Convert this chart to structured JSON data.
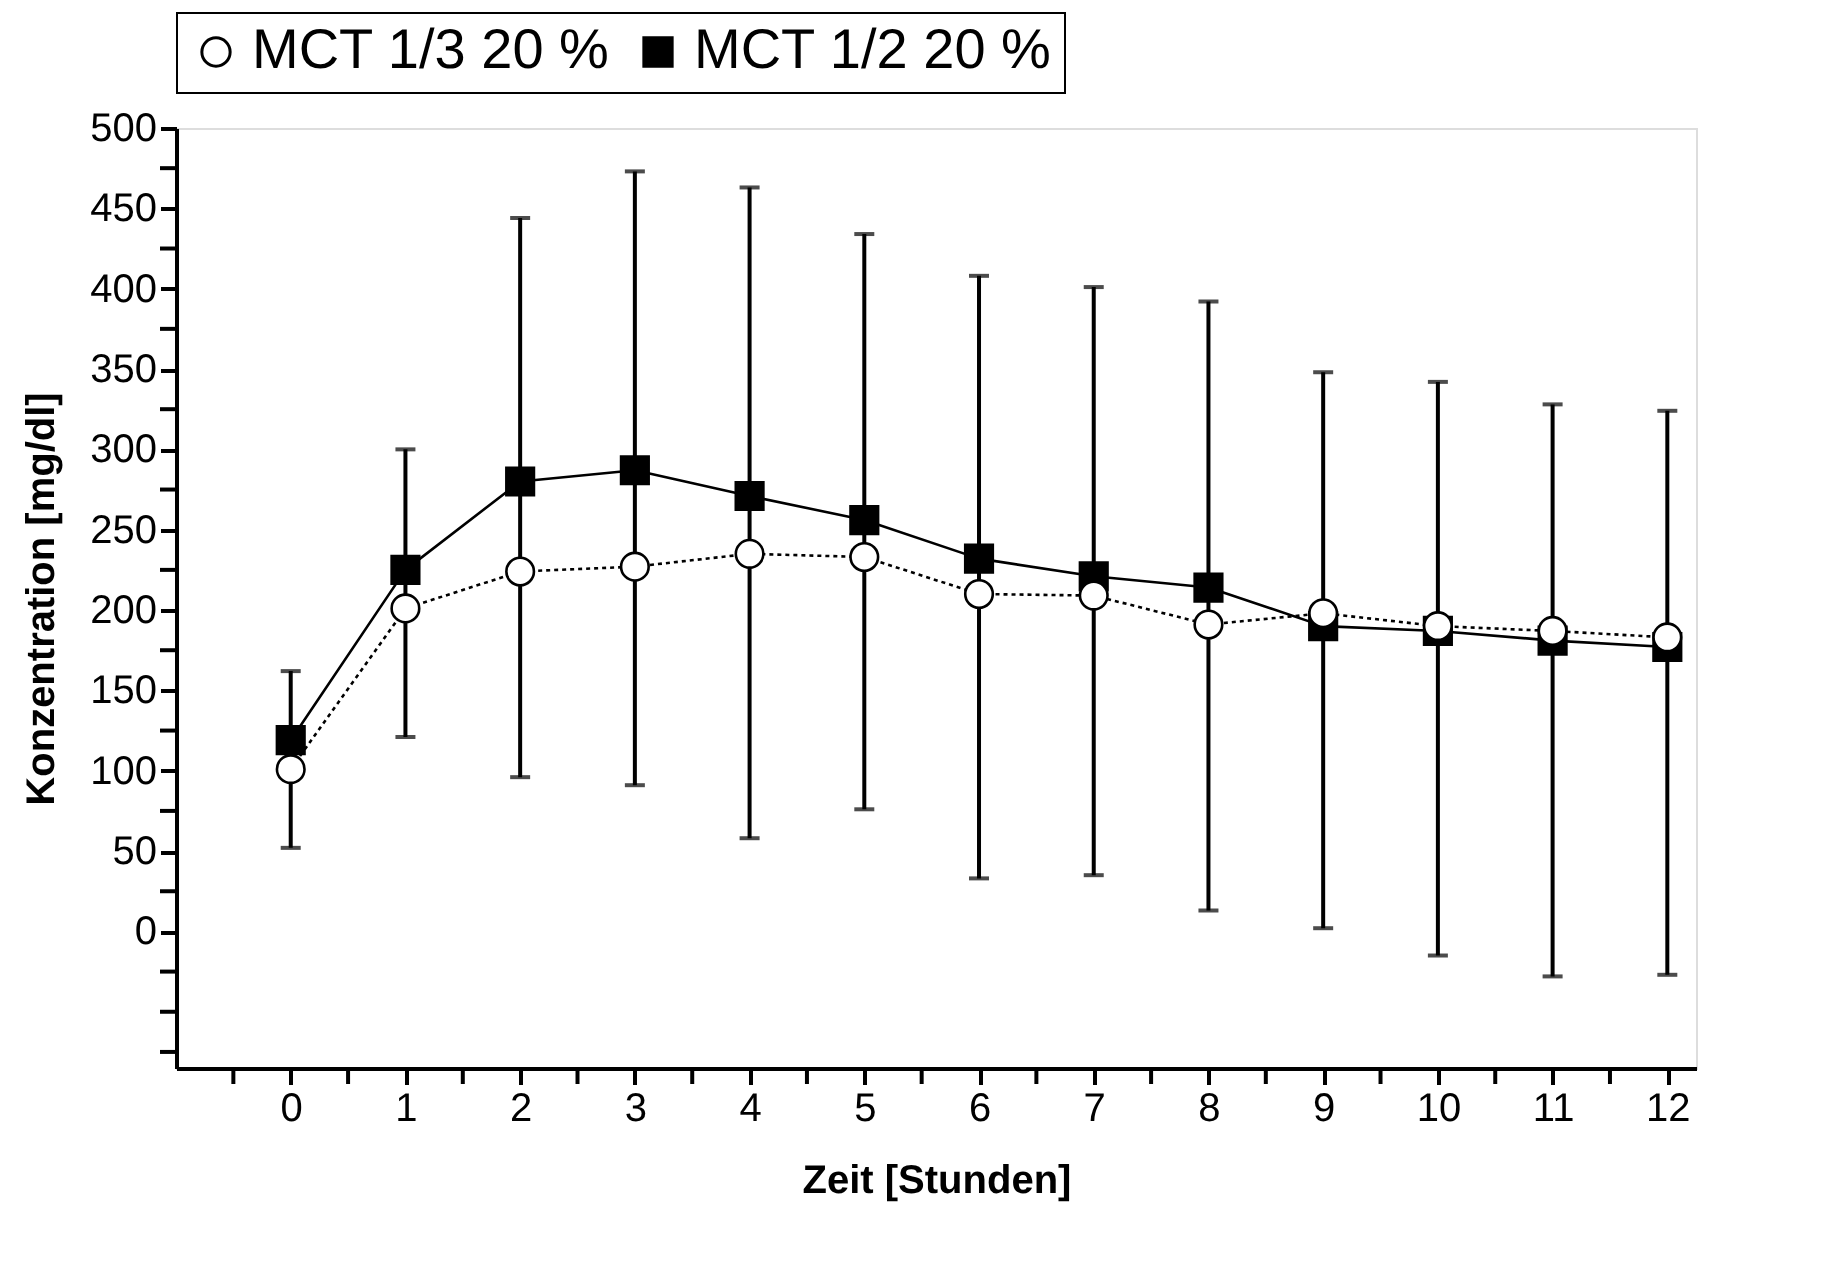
{
  "chart_data": {
    "type": "line",
    "xlabel": "Zeit [Stunden]",
    "ylabel": "Konzentration [mg/dl]",
    "x": [
      0,
      1,
      2,
      3,
      4,
      5,
      6,
      7,
      8,
      9,
      10,
      11,
      12
    ],
    "xlim": [
      -1,
      12.25
    ],
    "xticks": [
      {
        "value": -0.5,
        "label": null
      },
      0,
      {
        "value": 0.5,
        "label": null
      },
      1,
      {
        "value": 1.5,
        "label": null
      },
      2,
      {
        "value": 2.5,
        "label": null
      },
      3,
      {
        "value": 3.5,
        "label": null
      },
      4,
      {
        "value": 4.5,
        "label": null
      },
      5,
      {
        "value": 5.5,
        "label": null
      },
      6,
      {
        "value": 6.5,
        "label": null
      },
      7,
      {
        "value": 7.5,
        "label": null
      },
      8,
      {
        "value": 8.5,
        "label": null
      },
      9,
      {
        "value": 9.5,
        "label": null
      },
      10,
      {
        "value": 10.5,
        "label": null
      },
      11,
      {
        "value": 11.5,
        "label": null
      },
      12
    ],
    "ylim": [
      -85,
      500
    ],
    "yticks": [
      {
        "value": -75,
        "label": null
      },
      {
        "value": -50,
        "label": null
      },
      {
        "value": -25,
        "label": null
      },
      0,
      {
        "value": 25,
        "label": null
      },
      50,
      {
        "value": 75,
        "label": null
      },
      100,
      {
        "value": 125,
        "label": null
      },
      150,
      {
        "value": 175,
        "label": null
      },
      200,
      {
        "value": 225,
        "label": null
      },
      250,
      {
        "value": 275,
        "label": null
      },
      300,
      {
        "value": 325,
        "label": null
      },
      350,
      {
        "value": 375,
        "label": null
      },
      400,
      {
        "value": 425,
        "label": null
      },
      450,
      {
        "value": 475,
        "label": null
      },
      500
    ],
    "grid": false,
    "legend": "top",
    "series": [
      {
        "name": "MCT 1/3 20 %",
        "color": "#000000",
        "marker": "circle",
        "line_style": "dotted",
        "values": [
          101,
          201,
          224,
          227,
          235,
          233,
          210,
          209,
          191,
          198,
          190,
          187,
          183
        ]
      },
      {
        "name": "MCT 1/2 20 %",
        "color": "#000000",
        "marker": "square",
        "line_style": "solid",
        "values": [
          119,
          225,
          280,
          287,
          271,
          256,
          232,
          221,
          214,
          190,
          187,
          181,
          177
        ],
        "errors": [
          [
            52,
            162
          ],
          [
            121,
            300
          ],
          [
            96,
            444
          ],
          [
            91,
            473
          ],
          [
            58,
            463
          ],
          [
            76,
            434
          ],
          [
            33,
            408
          ],
          [
            35,
            401
          ],
          [
            13,
            392
          ],
          [
            2,
            348
          ],
          [
            -15,
            342
          ],
          [
            -28,
            328
          ],
          [
            -27,
            324
          ]
        ]
      }
    ]
  }
}
